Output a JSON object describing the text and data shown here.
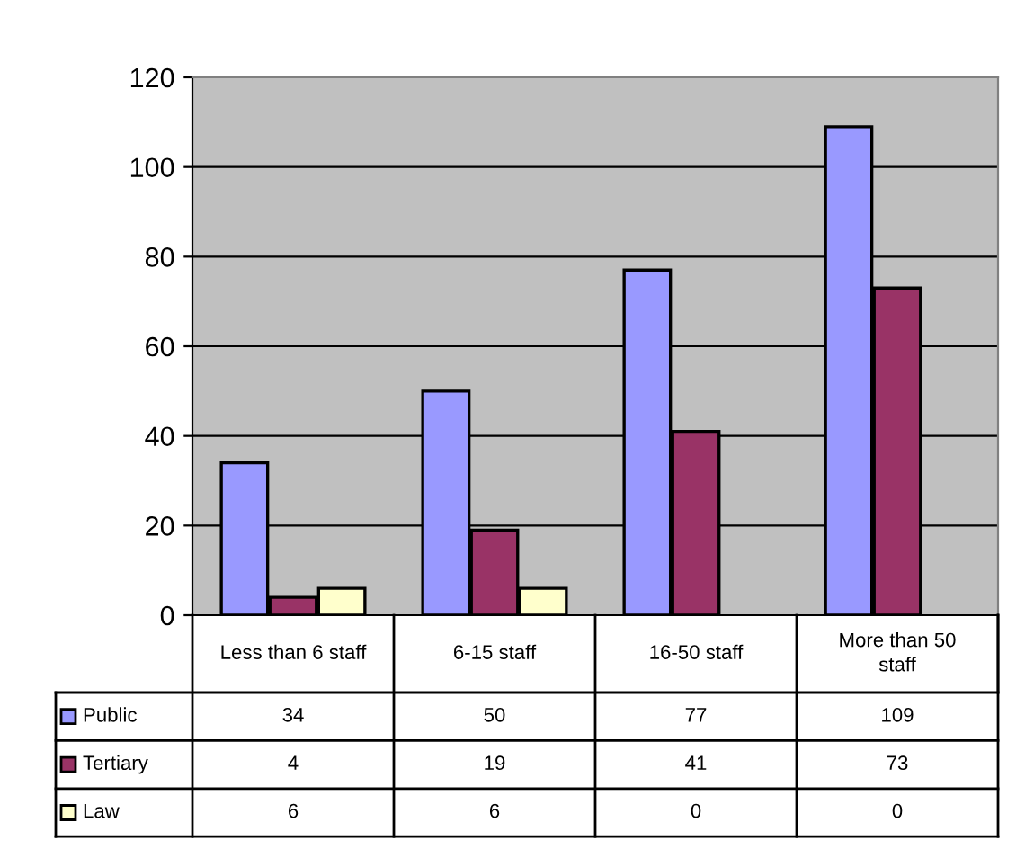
{
  "chart_data": {
    "type": "bar",
    "categories": [
      "Less than 6 staff",
      "6-15 staff",
      "16-50 staff",
      "More than 50 staff"
    ],
    "series": [
      {
        "name": "Public",
        "color": "#9999ff",
        "values": [
          34,
          50,
          77,
          109
        ]
      },
      {
        "name": "Tertiary",
        "color": "#993366",
        "values": [
          4,
          19,
          41,
          73
        ]
      },
      {
        "name": "Law",
        "color": "#ffffcc",
        "values": [
          6,
          6,
          0,
          0
        ]
      }
    ],
    "ylim": [
      0,
      120
    ],
    "yticks": [
      0,
      20,
      40,
      60,
      80,
      100,
      120
    ],
    "grid": "y",
    "data_labels": true,
    "legend": "bottom left"
  }
}
